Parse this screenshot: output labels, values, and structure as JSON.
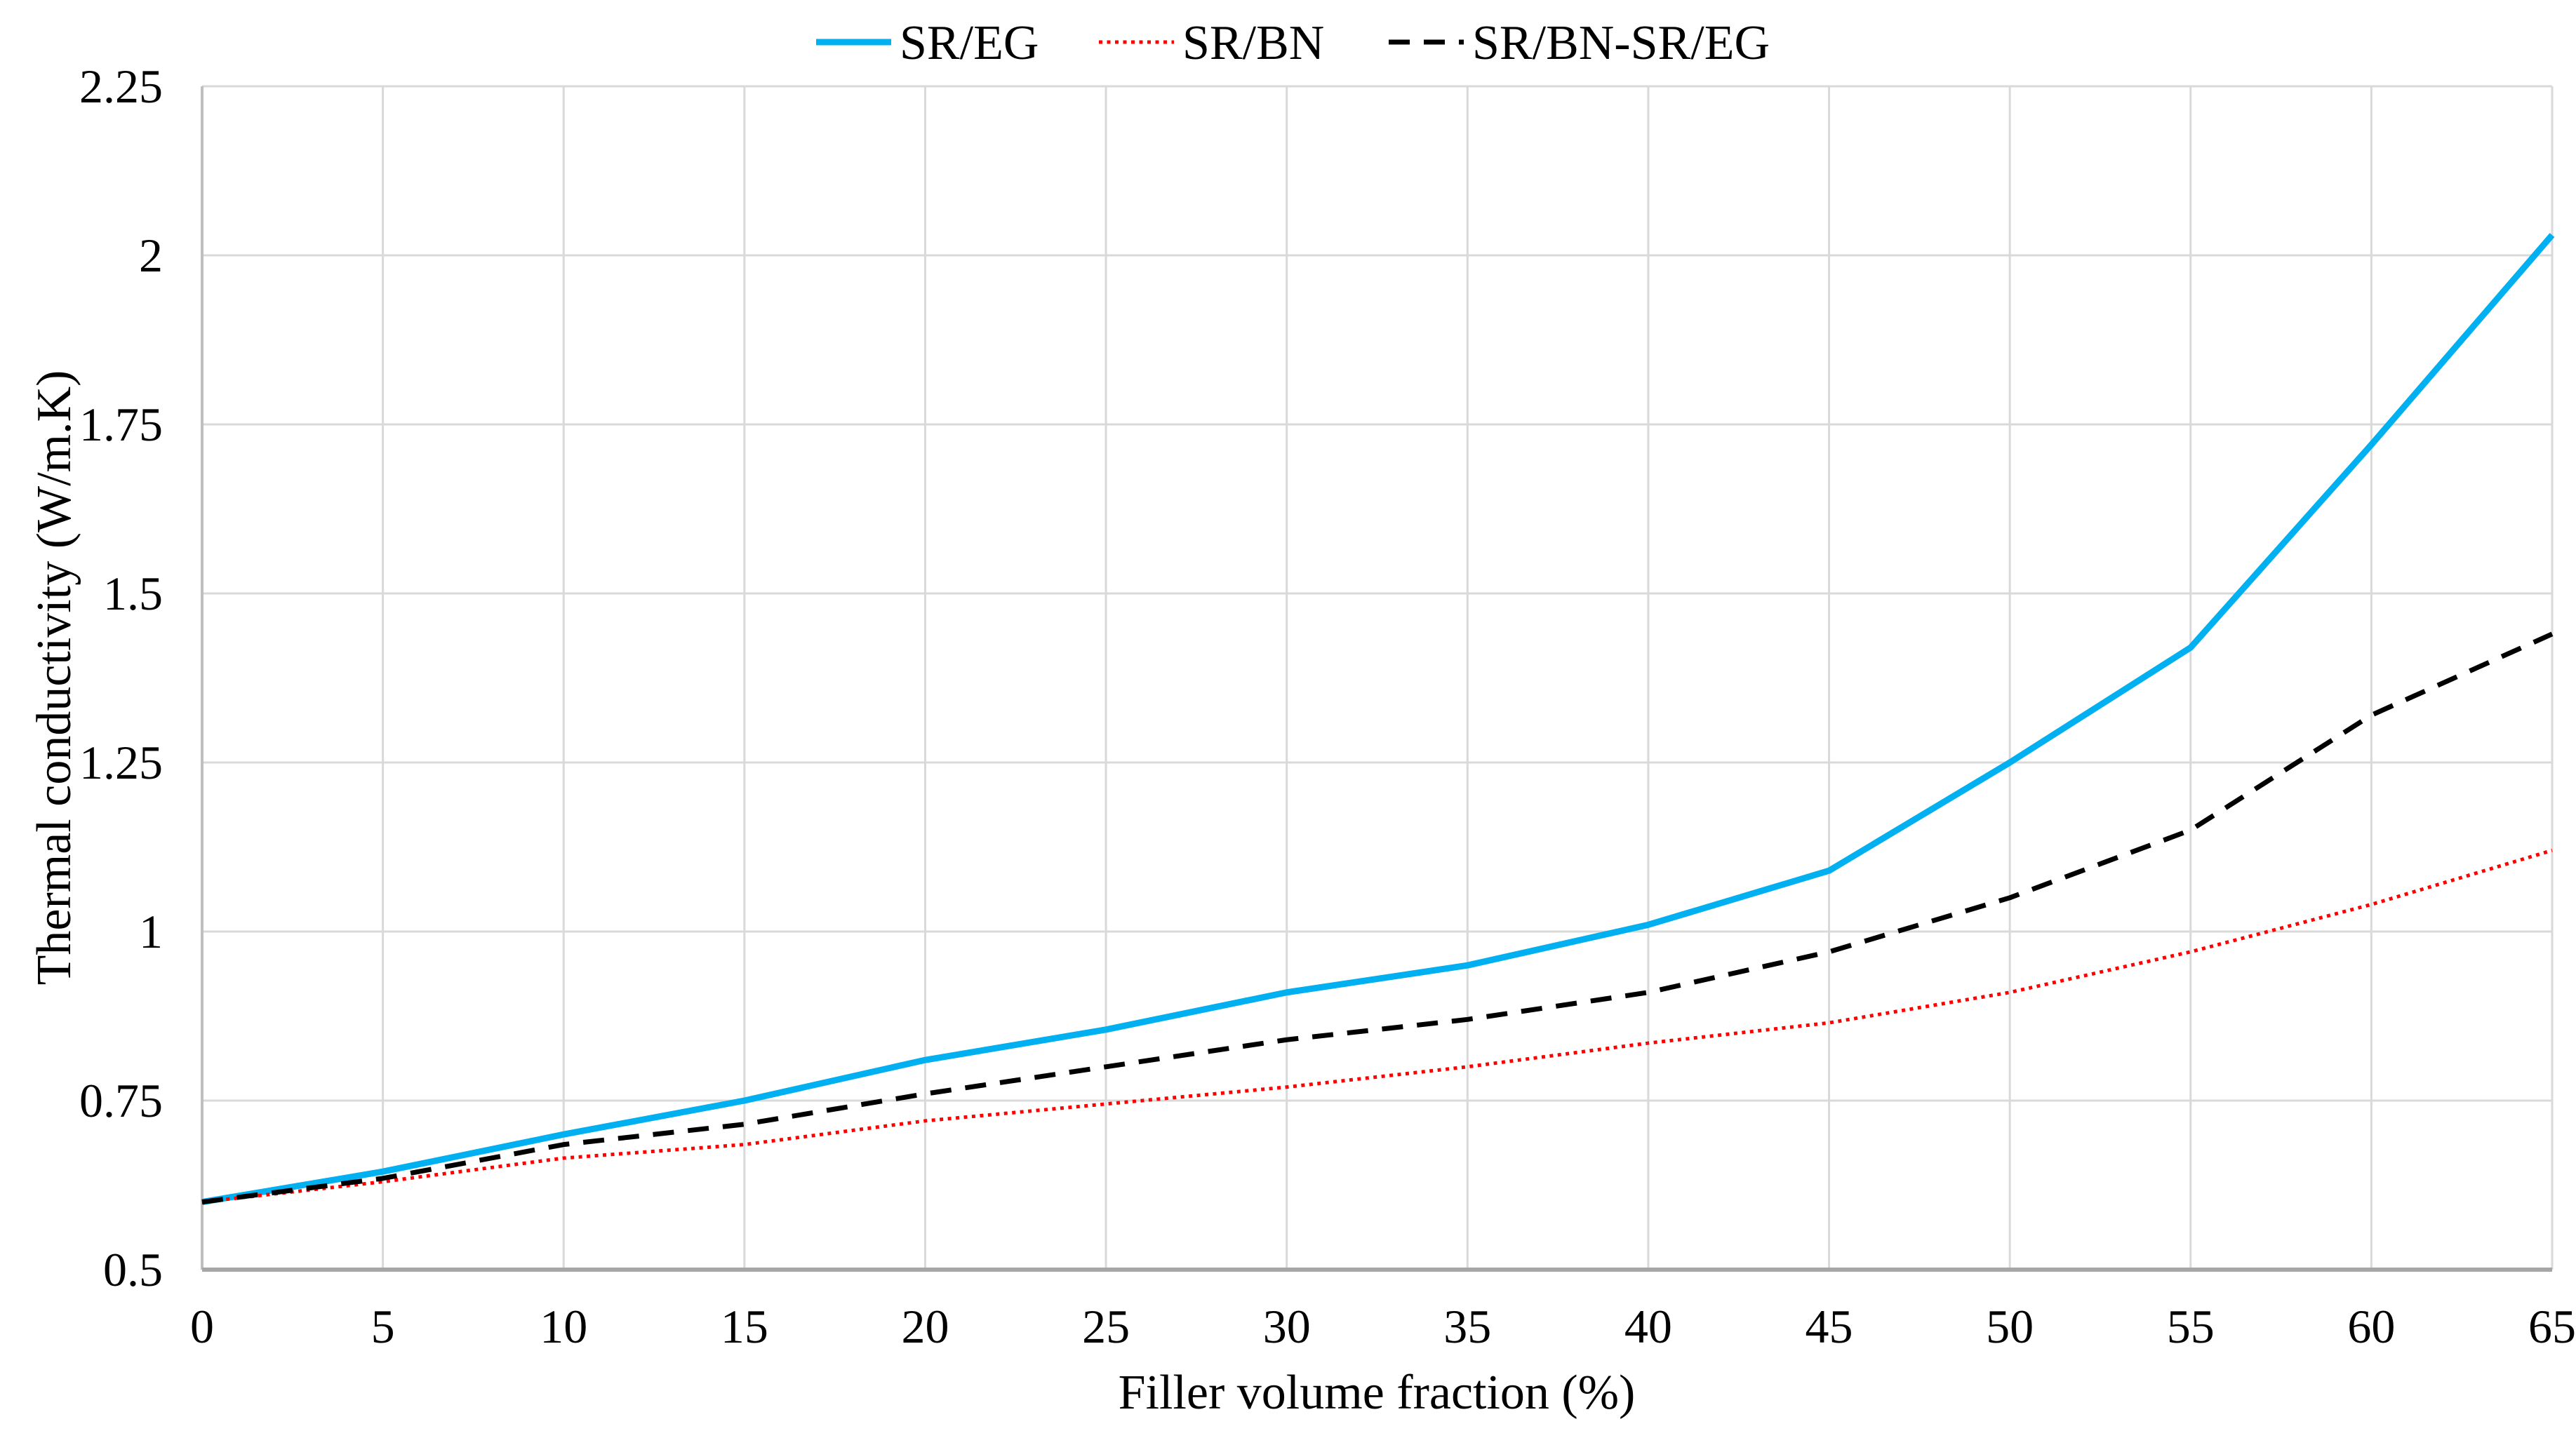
{
  "chart_data": {
    "type": "line",
    "title": "",
    "xlabel": "Filler volume fraction (%)",
    "ylabel": "Thermal conductivity (W/m.K)",
    "x": [
      0,
      5,
      10,
      15,
      20,
      25,
      30,
      35,
      40,
      45,
      50,
      55,
      60,
      65
    ],
    "series": [
      {
        "name": "SR/EG",
        "color": "#00B0F0",
        "line_style": "solid",
        "values": [
          0.6,
          0.645,
          0.7,
          0.75,
          0.81,
          0.855,
          0.91,
          0.95,
          1.01,
          1.09,
          1.25,
          1.42,
          1.72,
          2.03
        ]
      },
      {
        "name": "SR/BN",
        "color": "#FF0000",
        "line_style": "dotted",
        "values": [
          0.6,
          0.63,
          0.665,
          0.685,
          0.72,
          0.745,
          0.77,
          0.8,
          0.835,
          0.865,
          0.91,
          0.97,
          1.04,
          1.12
        ]
      },
      {
        "name": "SR/BN-SR/EG",
        "color": "#000000",
        "line_style": "dashed",
        "values": [
          0.6,
          0.635,
          0.685,
          0.715,
          0.76,
          0.8,
          0.84,
          0.87,
          0.91,
          0.97,
          1.05,
          1.15,
          1.32,
          1.44
        ]
      }
    ],
    "xlim": [
      0,
      65
    ],
    "ylim": [
      0.5,
      2.25
    ],
    "x_tick_labels": [
      "0",
      "5",
      "10",
      "15",
      "20",
      "25",
      "30",
      "35",
      "40",
      "45",
      "50",
      "55",
      "60",
      "65"
    ],
    "y_tick_labels": [
      "0.5",
      "0.75",
      "1",
      "1.25",
      "1.5",
      "1.75",
      "2",
      "2.25"
    ],
    "y_tick_values": [
      0.5,
      0.75,
      1,
      1.25,
      1.5,
      1.75,
      2,
      2.25
    ],
    "grid": true,
    "legend_position": "top-center",
    "colors": {
      "background": "#FFFFFF",
      "gridline": "#D9D9D9",
      "axis_line": "#BFBFBF",
      "text": "#000000"
    }
  }
}
